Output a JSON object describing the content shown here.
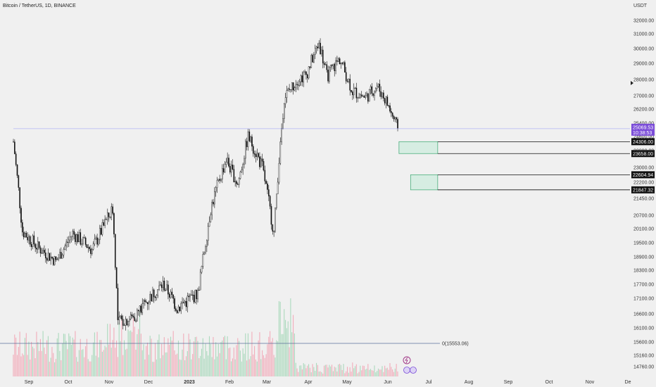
{
  "chart_data": {
    "type": "candlestick",
    "title": "Bitcoin / TetherUS, 1D, BINANCE",
    "currency_label": "USDT",
    "y_ticks": [
      32000,
      31000,
      30000,
      29000,
      28000,
      27000,
      26200,
      25400,
      24600,
      23800,
      23000,
      22200,
      21450,
      20700,
      20100,
      19500,
      18900,
      18300,
      17700,
      17100,
      16600,
      16100,
      15600,
      15160,
      14760
    ],
    "y_tick_labels": [
      "32000.00",
      "31000.00",
      "30000.00",
      "29000.00",
      "28000.00",
      "27000.00",
      "26200.00",
      "25400.00",
      "24600.00",
      "23800.00",
      "23000.00",
      "22200.00",
      "21450.00",
      "20700.00",
      "20100.00",
      "19500.00",
      "18900.00",
      "18300.00",
      "17700.00",
      "17100.00",
      "16600.00",
      "16100.00",
      "15600.00",
      "15160.00",
      "14760.00"
    ],
    "x_ticks": [
      "Sep",
      "Oct",
      "Nov",
      "Dec",
      "2023",
      "Feb",
      "Mar",
      "Apr",
      "May",
      "Jun",
      "Jul",
      "Aug",
      "Sep",
      "Oct",
      "Nov",
      "De"
    ],
    "current_price": {
      "value": 25069.53,
      "label": "25069.53",
      "countdown": "10:38:53"
    },
    "levels": [
      {
        "value": 24306.0,
        "label": "24306.00"
      },
      {
        "value": 23658.0,
        "label": "23658.00"
      },
      {
        "value": 22604.94,
        "label": "22604.94"
      },
      {
        "value": 21847.32,
        "label": "21847.32"
      }
    ],
    "zones": [
      {
        "top": 24306.0,
        "bottom": 23658.0,
        "start": "2023-06-15",
        "end": "2023-07-15"
      },
      {
        "top": 22604.94,
        "bottom": 21847.32,
        "start": "2023-06-24",
        "end": "2023-07-15"
      }
    ],
    "horizontal_line": {
      "value": 25069.53,
      "start": "2022-08-20"
    },
    "volume_line": {
      "label": "0(15553.06)",
      "value": 15553.06
    },
    "price_path": [
      {
        "x": "2022-08-20",
        "y": 24300
      },
      {
        "x": "2022-08-27",
        "y": 20000
      },
      {
        "x": "2022-09-08",
        "y": 19300
      },
      {
        "x": "2022-09-13",
        "y": 19100
      },
      {
        "x": "2022-09-22",
        "y": 18700
      },
      {
        "x": "2022-10-05",
        "y": 19900
      },
      {
        "x": "2022-10-20",
        "y": 19200
      },
      {
        "x": "2022-11-05",
        "y": 21000
      },
      {
        "x": "2022-11-09",
        "y": 16300
      },
      {
        "x": "2022-11-22",
        "y": 16500
      },
      {
        "x": "2022-12-01",
        "y": 17000
      },
      {
        "x": "2022-12-14",
        "y": 17700
      },
      {
        "x": "2022-12-25",
        "y": 16800
      },
      {
        "x": "2023-01-10",
        "y": 17300
      },
      {
        "x": "2023-01-20",
        "y": 21000
      },
      {
        "x": "2023-02-01",
        "y": 23400
      },
      {
        "x": "2023-02-10",
        "y": 22100
      },
      {
        "x": "2023-02-18",
        "y": 24600
      },
      {
        "x": "2023-03-01",
        "y": 23000
      },
      {
        "x": "2023-03-10",
        "y": 19900
      },
      {
        "x": "2023-03-18",
        "y": 26900
      },
      {
        "x": "2023-03-28",
        "y": 28000
      },
      {
        "x": "2023-04-04",
        "y": 28300
      },
      {
        "x": "2023-04-14",
        "y": 30400
      },
      {
        "x": "2023-04-20",
        "y": 28200
      },
      {
        "x": "2023-04-30",
        "y": 29300
      },
      {
        "x": "2023-05-10",
        "y": 27300
      },
      {
        "x": "2023-05-20",
        "y": 26900
      },
      {
        "x": "2023-05-29",
        "y": 27600
      },
      {
        "x": "2023-06-05",
        "y": 26700
      },
      {
        "x": "2023-06-14",
        "y": 25069
      }
    ]
  }
}
